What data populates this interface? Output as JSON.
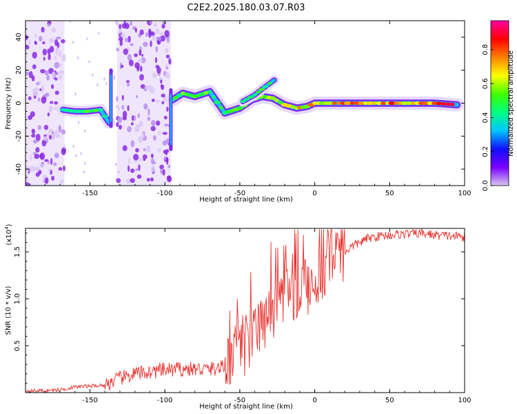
{
  "chart_data": [
    {
      "type": "heatmap",
      "title": "C2E2.2025.180.03.07.R03",
      "xlabel": "Height of straight line (km)",
      "ylabel": "Frequency (Hz)",
      "xlim": [
        -193,
        100
      ],
      "ylim": [
        -50,
        50
      ],
      "xticks": [
        -150,
        -100,
        -50,
        0,
        50,
        100
      ],
      "yticks": [
        -40,
        -20,
        0,
        20,
        40
      ],
      "colorbar": {
        "label": "Normalized spectral amplitude",
        "ticks": [
          0.0,
          0.2,
          0.4,
          0.6,
          0.8
        ],
        "range": [
          0,
          0.97
        ],
        "stops": [
          "#d8c8f0",
          "#7a00ff",
          "#1010ff",
          "#00c8ff",
          "#00ff80",
          "#40ff00",
          "#ffff00",
          "#ff8000",
          "#ff0000",
          "#ff00a0"
        ]
      },
      "ridge": [
        {
          "x": -168,
          "y": -4,
          "amp": 0.45
        },
        {
          "x": -160,
          "y": -5,
          "amp": 0.5
        },
        {
          "x": -152,
          "y": -5,
          "amp": 0.55
        },
        {
          "x": -143,
          "y": -4,
          "amp": 0.5
        },
        {
          "x": -137,
          "y": -12,
          "amp": 0.5
        },
        {
          "x": -95,
          "y": 2,
          "amp": 0.5
        },
        {
          "x": -88,
          "y": 6,
          "amp": 0.55
        },
        {
          "x": -80,
          "y": 4,
          "amp": 0.5
        },
        {
          "x": -70,
          "y": 7,
          "amp": 0.55
        },
        {
          "x": -60,
          "y": -6,
          "amp": 0.5
        },
        {
          "x": -50,
          "y": -3,
          "amp": 0.55
        },
        {
          "x": -42,
          "y": 2,
          "amp": 0.6
        },
        {
          "x": -35,
          "y": 4,
          "amp": 0.6
        },
        {
          "x": -28,
          "y": 3,
          "amp": 0.6
        },
        {
          "x": -20,
          "y": -1,
          "amp": 0.65
        },
        {
          "x": -12,
          "y": -3,
          "amp": 0.7
        },
        {
          "x": -5,
          "y": -2,
          "amp": 0.7
        },
        {
          "x": 0,
          "y": 0,
          "amp": 0.72
        },
        {
          "x": 10,
          "y": 0,
          "amp": 0.75
        },
        {
          "x": 25,
          "y": 0,
          "amp": 0.8
        },
        {
          "x": 40,
          "y": 0,
          "amp": 0.8
        },
        {
          "x": 60,
          "y": 0,
          "amp": 0.8
        },
        {
          "x": 80,
          "y": 0,
          "amp": 0.8
        },
        {
          "x": 95,
          "y": -1,
          "amp": 0.85
        }
      ],
      "upper_branch": [
        {
          "x": -48,
          "y": 1
        },
        {
          "x": -40,
          "y": 5
        },
        {
          "x": -33,
          "y": 10
        },
        {
          "x": -27,
          "y": 14
        }
      ],
      "noise_bands": [
        {
          "x": [
            -193,
            -167
          ],
          "amp": 0.1
        },
        {
          "x": [
            -132,
            -96
          ],
          "amp": 0.12
        }
      ]
    },
    {
      "type": "line",
      "title": "",
      "xlabel": "Height of straight line (km)",
      "ylabel": "SNR (10 * v/v)",
      "scale_label": "(x10",
      "scale_exp": "4",
      "scale_close": ")",
      "xlim": [
        -193,
        100
      ],
      "ylim": [
        0,
        1.75
      ],
      "xticks": [
        -150,
        -100,
        -50,
        0,
        50,
        100
      ],
      "yticks": [
        0.5,
        1.0,
        1.5
      ],
      "ytick_labels": [
        "0.5",
        "1.0",
        "1.5"
      ],
      "color": "#e8302c",
      "x": [
        -193,
        -180,
        -170,
        -160,
        -150,
        -140,
        -135,
        -130,
        -120,
        -110,
        -100,
        -90,
        -80,
        -70,
        -60,
        -55,
        -50,
        -45,
        -40,
        -35,
        -30,
        -25,
        -20,
        -15,
        -10,
        -5,
        0,
        5,
        10,
        15,
        20,
        25,
        30,
        35,
        40,
        50,
        60,
        70,
        80,
        90,
        100
      ],
      "y": [
        0.02,
        0.02,
        0.03,
        0.06,
        0.07,
        0.08,
        0.12,
        0.15,
        0.2,
        0.22,
        0.24,
        0.25,
        0.25,
        0.25,
        0.27,
        0.33,
        0.42,
        0.48,
        0.58,
        0.7,
        0.8,
        0.9,
        0.98,
        1.05,
        1.1,
        1.12,
        1.18,
        1.3,
        1.4,
        1.45,
        1.5,
        1.56,
        1.6,
        1.64,
        1.66,
        1.68,
        1.69,
        1.7,
        1.68,
        1.67,
        1.66
      ]
    }
  ]
}
